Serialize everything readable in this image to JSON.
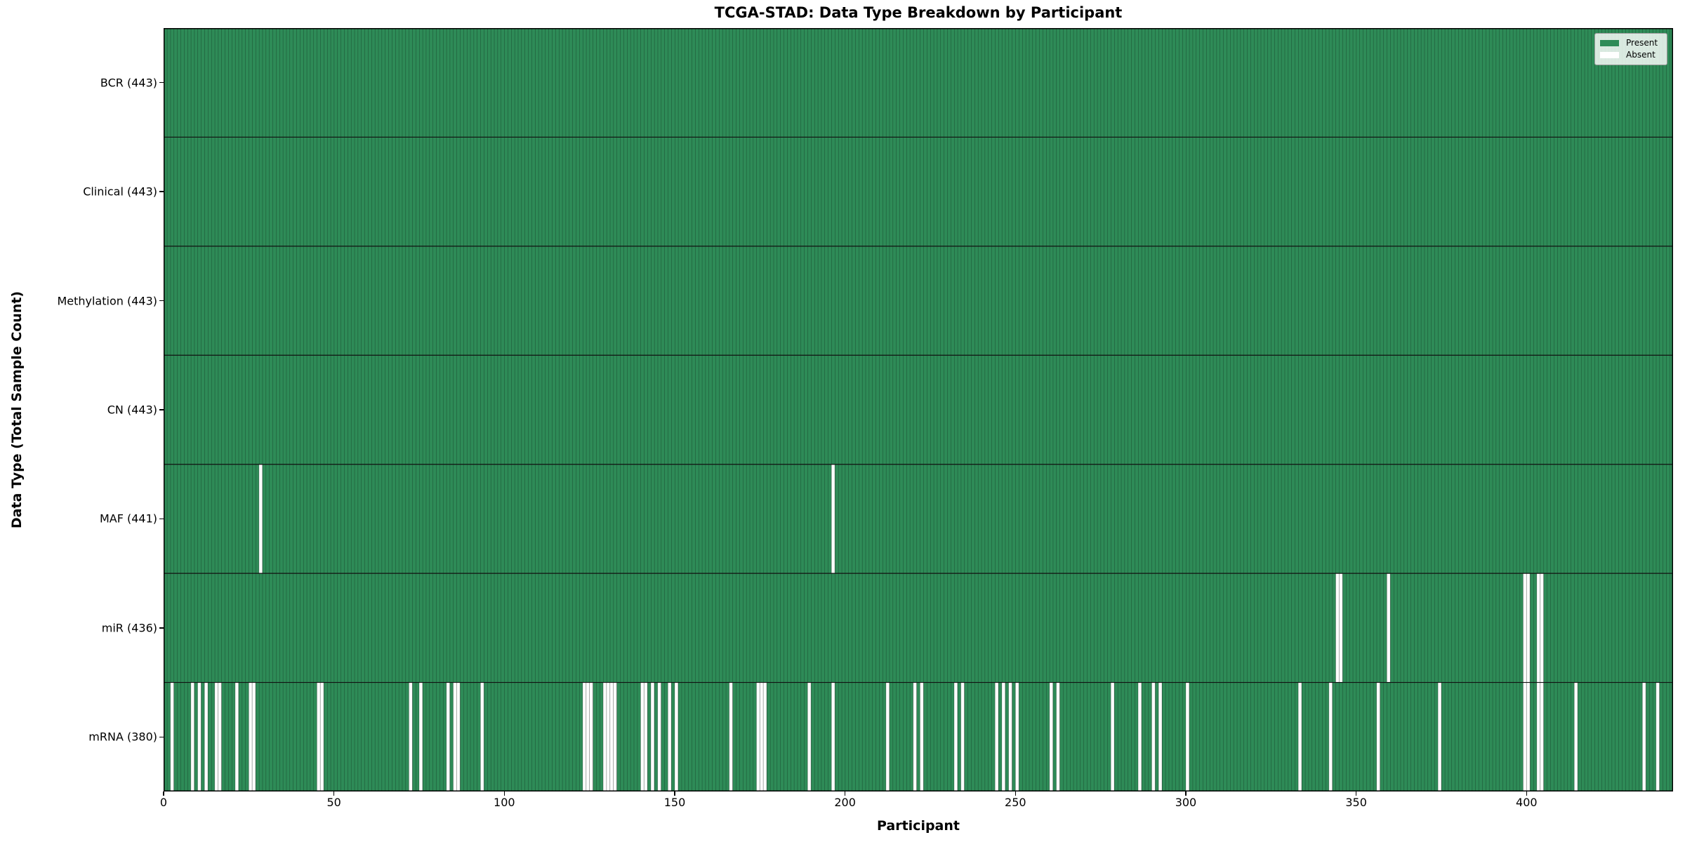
{
  "chart_data": {
    "type": "heatmap",
    "title": "TCGA-STAD: Data Type Breakdown by Participant",
    "xlabel": "Participant",
    "ylabel": "Data Type (Total Sample Count)",
    "x_range": [
      0,
      443
    ],
    "x_ticks": [
      0,
      50,
      100,
      150,
      200,
      250,
      300,
      350,
      400
    ],
    "n_participants": 443,
    "grid": false,
    "colors": {
      "present": "#2E8B57",
      "absent": "#FFFFFF",
      "column_separator": "rgba(0,0,0,0.5)",
      "row_separator": "#111111",
      "plot_border": "#000000"
    },
    "legend": {
      "position": "upper right",
      "entries": [
        {
          "label": "Present",
          "color": "#2E8B57"
        },
        {
          "label": "Absent",
          "color": "#FFFFFF"
        }
      ]
    },
    "rows": [
      {
        "label": "BCR (443)",
        "data_type": "BCR",
        "present_count": 443,
        "absent_participants": []
      },
      {
        "label": "Clinical (443)",
        "data_type": "Clinical",
        "present_count": 443,
        "absent_participants": []
      },
      {
        "label": "Methylation (443)",
        "data_type": "Methylation",
        "present_count": 443,
        "absent_participants": []
      },
      {
        "label": "CN (443)",
        "data_type": "CN",
        "present_count": 443,
        "absent_participants": []
      },
      {
        "label": "MAF (441)",
        "data_type": "MAF",
        "present_count": 441,
        "absent_participants": [
          28,
          196
        ]
      },
      {
        "label": "miR (436)",
        "data_type": "miR",
        "present_count": 436,
        "absent_participants": [
          344,
          345,
          359,
          399,
          400,
          403,
          404
        ]
      },
      {
        "label": "mRNA (380)",
        "data_type": "mRNA",
        "present_count": 380,
        "absent_participants": [
          2,
          8,
          10,
          12,
          15,
          16,
          21,
          25,
          26,
          45,
          46,
          72,
          75,
          83,
          85,
          86,
          93,
          123,
          124,
          125,
          129,
          130,
          131,
          132,
          140,
          141,
          143,
          145,
          148,
          150,
          166,
          174,
          175,
          176,
          189,
          196,
          212,
          220,
          222,
          232,
          234,
          244,
          246,
          248,
          250,
          260,
          262,
          278,
          286,
          290,
          292,
          300,
          333,
          342,
          356,
          374,
          399,
          400,
          403,
          404,
          414,
          434,
          438
        ]
      }
    ]
  }
}
